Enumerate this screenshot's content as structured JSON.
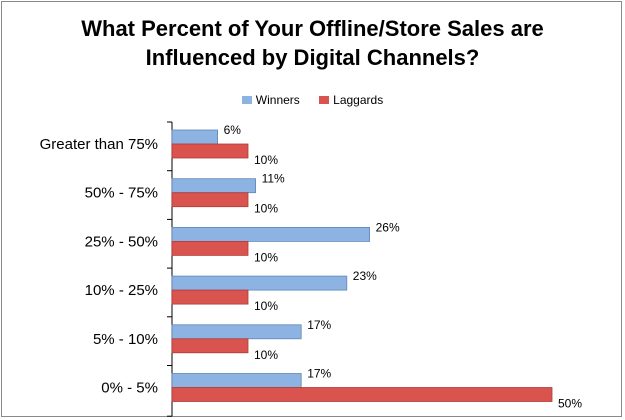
{
  "chart_data": {
    "type": "bar",
    "orientation": "horizontal",
    "title_lines": [
      "What Percent of Your Offline/Store Sales are",
      "Influenced by Digital Channels?"
    ],
    "categories": [
      "Greater than 75%",
      "50% - 75%",
      "25% - 50%",
      "10% - 25%",
      "5% - 10%",
      "0% - 5%"
    ],
    "series": [
      {
        "name": "Winners",
        "color": "#8db3e2",
        "values": [
          6,
          11,
          26,
          23,
          17,
          17
        ],
        "labels": [
          "6%",
          "11%",
          "26%",
          "23%",
          "17%",
          "17%"
        ]
      },
      {
        "name": "Laggards",
        "color": "#d9534f",
        "values": [
          10,
          10,
          10,
          10,
          10,
          50
        ],
        "labels": [
          "10%",
          "10%",
          "10%",
          "10%",
          "10%",
          "50%"
        ]
      }
    ],
    "xlim": [
      0,
      50
    ],
    "legend_position": "top",
    "grid": false
  }
}
